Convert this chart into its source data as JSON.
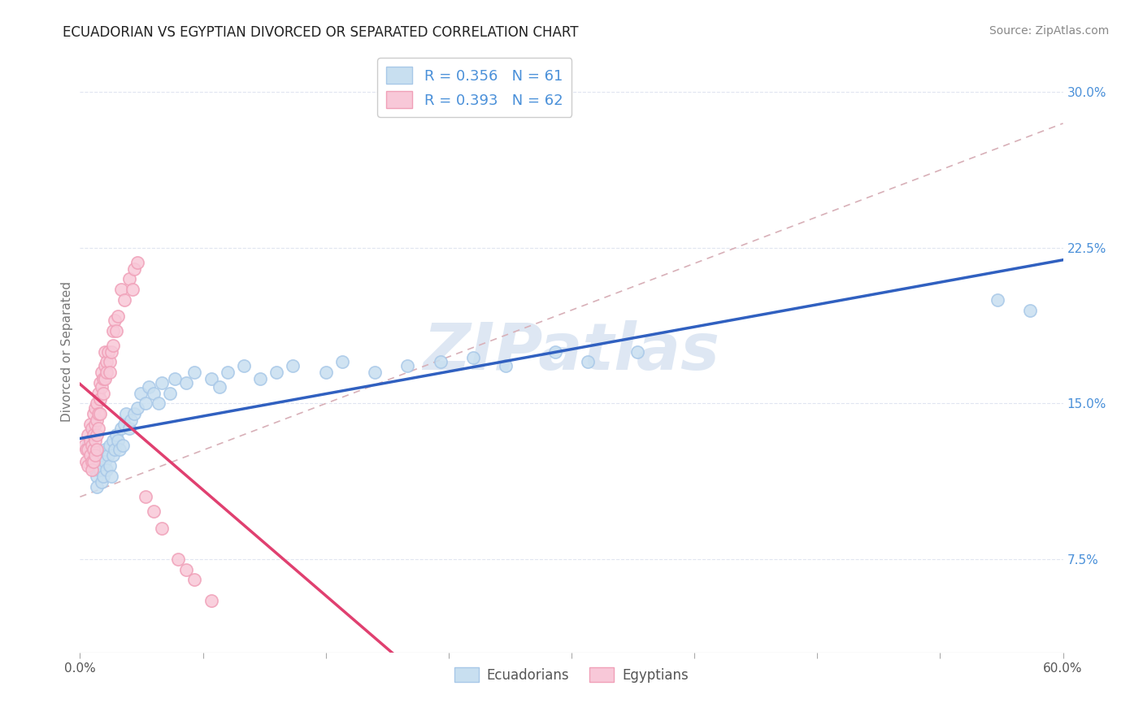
{
  "title": "ECUADORIAN VS EGYPTIAN DIVORCED OR SEPARATED CORRELATION CHART",
  "source": "Source: ZipAtlas.com",
  "ylabel": "Divorced or Separated",
  "legend_label1": "Ecuadorians",
  "legend_label2": "Egyptians",
  "blue_color": "#a8c8e8",
  "pink_color": "#f0a0b8",
  "blue_face_color": "#c8dff0",
  "pink_face_color": "#f8c8d8",
  "blue_line_color": "#3060c0",
  "pink_line_color": "#e04070",
  "dash_line_color": "#d8b0b8",
  "text_color": "#4a90d9",
  "title_color": "#222222",
  "source_color": "#888888",
  "ylabel_color": "#777777",
  "xtick_color": "#555555",
  "ytick_color": "#4a90d9",
  "grid_color": "#e0e5f0",
  "xmin": 0.0,
  "xmax": 0.6,
  "ymin": 0.03,
  "ymax": 0.32,
  "ytick_vals": [
    0.075,
    0.15,
    0.225,
    0.3
  ],
  "ytick_labels": [
    "7.5%",
    "15.0%",
    "22.5%",
    "30.0%"
  ],
  "xtick_vals": [
    0.0,
    0.075,
    0.15,
    0.225,
    0.3,
    0.375,
    0.45,
    0.525,
    0.6
  ],
  "xtick_edge_labels": [
    "0.0%",
    "60.0%"
  ],
  "watermark": "ZIPatlas",
  "blue_scatter_x": [
    0.005,
    0.007,
    0.008,
    0.009,
    0.01,
    0.01,
    0.011,
    0.012,
    0.012,
    0.013,
    0.014,
    0.015,
    0.015,
    0.016,
    0.017,
    0.018,
    0.018,
    0.019,
    0.02,
    0.02,
    0.021,
    0.022,
    0.023,
    0.024,
    0.025,
    0.026,
    0.027,
    0.028,
    0.03,
    0.031,
    0.033,
    0.035,
    0.037,
    0.04,
    0.042,
    0.045,
    0.048,
    0.05,
    0.055,
    0.058,
    0.065,
    0.07,
    0.08,
    0.085,
    0.09,
    0.1,
    0.11,
    0.12,
    0.13,
    0.15,
    0.16,
    0.18,
    0.2,
    0.22,
    0.24,
    0.26,
    0.29,
    0.31,
    0.34,
    0.56,
    0.58
  ],
  "blue_scatter_y": [
    0.13,
    0.125,
    0.12,
    0.118,
    0.115,
    0.11,
    0.12,
    0.125,
    0.118,
    0.112,
    0.115,
    0.128,
    0.122,
    0.118,
    0.125,
    0.13,
    0.12,
    0.115,
    0.132,
    0.125,
    0.128,
    0.135,
    0.132,
    0.128,
    0.138,
    0.13,
    0.14,
    0.145,
    0.138,
    0.142,
    0.145,
    0.148,
    0.155,
    0.15,
    0.158,
    0.155,
    0.15,
    0.16,
    0.155,
    0.162,
    0.16,
    0.165,
    0.162,
    0.158,
    0.165,
    0.168,
    0.162,
    0.165,
    0.168,
    0.165,
    0.17,
    0.165,
    0.168,
    0.17,
    0.172,
    0.168,
    0.175,
    0.17,
    0.175,
    0.2,
    0.195
  ],
  "pink_scatter_x": [
    0.003,
    0.004,
    0.004,
    0.005,
    0.005,
    0.005,
    0.006,
    0.006,
    0.006,
    0.007,
    0.007,
    0.007,
    0.007,
    0.008,
    0.008,
    0.008,
    0.008,
    0.009,
    0.009,
    0.009,
    0.009,
    0.01,
    0.01,
    0.01,
    0.01,
    0.011,
    0.011,
    0.011,
    0.012,
    0.012,
    0.012,
    0.013,
    0.013,
    0.014,
    0.014,
    0.015,
    0.015,
    0.015,
    0.016,
    0.016,
    0.017,
    0.018,
    0.018,
    0.019,
    0.02,
    0.02,
    0.021,
    0.022,
    0.023,
    0.025,
    0.027,
    0.03,
    0.032,
    0.033,
    0.035,
    0.04,
    0.045,
    0.05,
    0.06,
    0.065,
    0.07,
    0.08
  ],
  "pink_scatter_y": [
    0.13,
    0.122,
    0.128,
    0.135,
    0.128,
    0.12,
    0.14,
    0.132,
    0.125,
    0.138,
    0.13,
    0.122,
    0.118,
    0.145,
    0.135,
    0.128,
    0.122,
    0.148,
    0.14,
    0.132,
    0.125,
    0.15,
    0.142,
    0.135,
    0.128,
    0.155,
    0.145,
    0.138,
    0.16,
    0.152,
    0.145,
    0.165,
    0.158,
    0.162,
    0.155,
    0.168,
    0.175,
    0.162,
    0.17,
    0.165,
    0.175,
    0.17,
    0.165,
    0.175,
    0.185,
    0.178,
    0.19,
    0.185,
    0.192,
    0.205,
    0.2,
    0.21,
    0.205,
    0.215,
    0.218,
    0.105,
    0.098,
    0.09,
    0.075,
    0.07,
    0.065,
    0.055
  ]
}
